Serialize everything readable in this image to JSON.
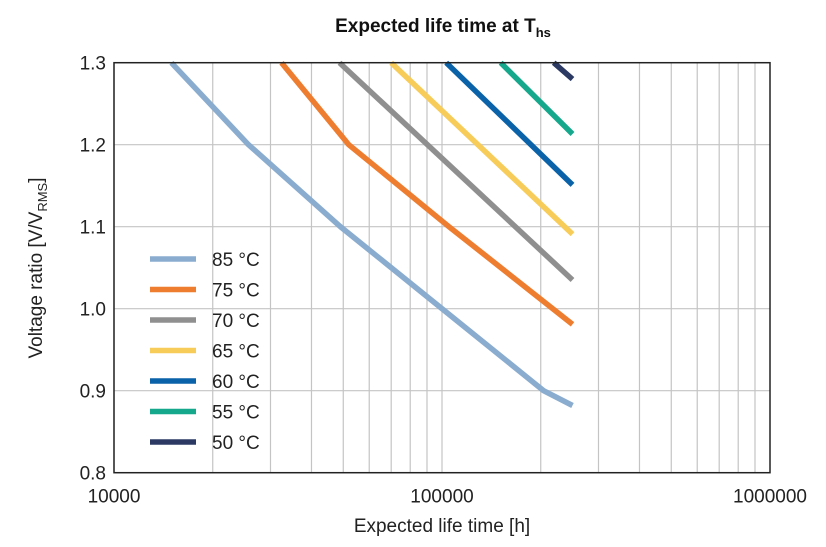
{
  "chart_data": {
    "type": "line",
    "title": "Expected life time at T",
    "title_subscript": "hs",
    "xlabel": "Expected life time [h]",
    "ylabel": "Voltage ratio [V/V",
    "ylabel_subscript": "RMS",
    "ylabel_end": "]",
    "xscale": "log",
    "xlim": [
      10000,
      1000000
    ],
    "ylim": [
      0.8,
      1.3
    ],
    "xticks": [
      "10000",
      "100000",
      "1000000"
    ],
    "xtick_values": [
      10000,
      100000,
      1000000
    ],
    "yticks": [
      "0.8",
      "0.9",
      "1.0",
      "1.1",
      "1.2",
      "1.3"
    ],
    "ytick_values": [
      0.8,
      0.9,
      1.0,
      1.1,
      1.2,
      1.3
    ],
    "grid": true,
    "legend_position": "bottom-left",
    "series": [
      {
        "name": "85 °C",
        "color": "#8aaccf",
        "x": [
          14960,
          25700,
          49000,
          100000,
          204000,
          250000
        ],
        "y": [
          1.3,
          1.2,
          1.1,
          1.0,
          0.9,
          0.882
        ]
      },
      {
        "name": "75 °C",
        "color": "#ee7d2f",
        "x": [
          32400,
          52000,
          105000,
          250000
        ],
        "y": [
          1.3,
          1.2,
          1.1,
          0.981
        ]
      },
      {
        "name": "70 °C",
        "color": "#8f8f8f",
        "x": [
          48700,
          250000
        ],
        "y": [
          1.3,
          1.035
        ]
      },
      {
        "name": "65 °C",
        "color": "#f7cc58",
        "x": [
          70000,
          250000
        ],
        "y": [
          1.3,
          1.091
        ]
      },
      {
        "name": "60 °C",
        "color": "#0a62a9",
        "x": [
          103000,
          250000
        ],
        "y": [
          1.3,
          1.151
        ]
      },
      {
        "name": "55 °C",
        "color": "#16a88c",
        "x": [
          151000,
          250000
        ],
        "y": [
          1.3,
          1.213
        ]
      },
      {
        "name": "50 °C",
        "color": "#2b3963",
        "x": [
          219000,
          250000
        ],
        "y": [
          1.3,
          1.28
        ]
      }
    ]
  }
}
